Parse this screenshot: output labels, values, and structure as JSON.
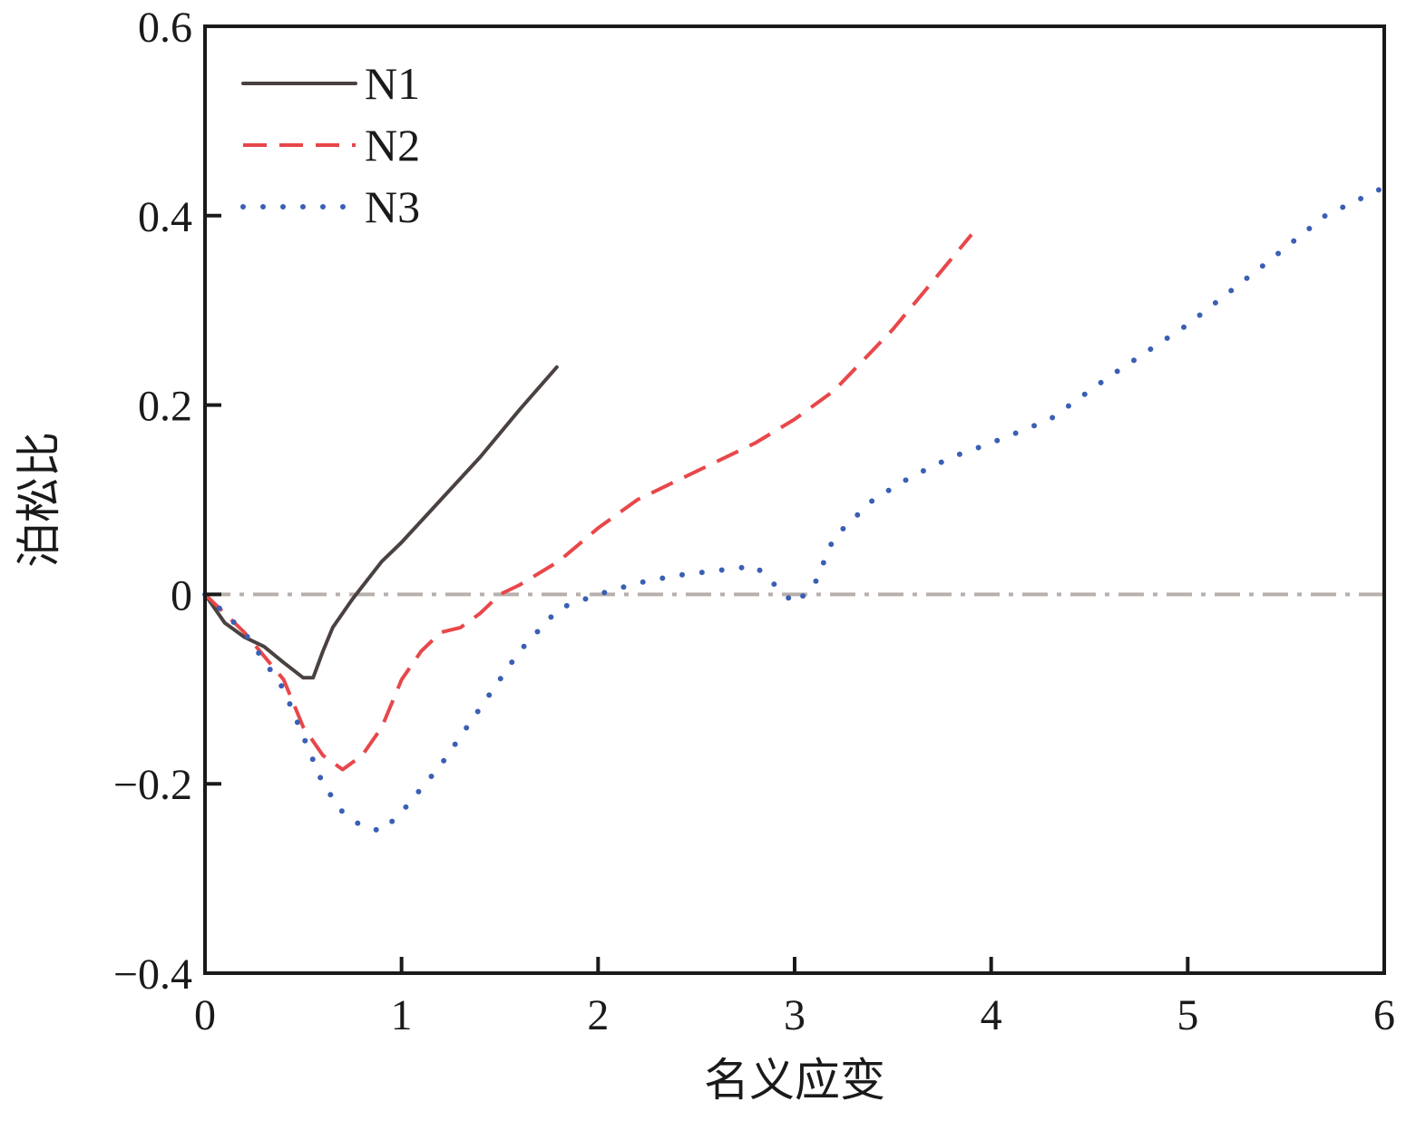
{
  "chart_data": {
    "type": "line",
    "xlabel": "名义应变",
    "ylabel": "泊松比",
    "xlim": [
      0,
      6
    ],
    "ylim": [
      -0.4,
      0.6
    ],
    "x_ticks": [
      0,
      1,
      2,
      3,
      4,
      5,
      6
    ],
    "x_tick_labels": [
      "0",
      "1",
      "2",
      "3",
      "4",
      "5",
      "6"
    ],
    "y_ticks": [
      -0.4,
      -0.2,
      0,
      0.2,
      0.4,
      0.6
    ],
    "y_tick_labels": [
      "−0.4",
      "−0.2",
      "0",
      "0.2",
      "0.4",
      "0.6"
    ],
    "grid": false,
    "legend_position": "top-left",
    "reference_line": {
      "y": 0,
      "style": "dash-dot",
      "color": "#b8b0ac"
    },
    "series": [
      {
        "name": "N1",
        "style": "solid",
        "color": "#4a4240",
        "x": [
          0,
          0.1,
          0.2,
          0.3,
          0.4,
          0.5,
          0.55,
          0.6,
          0.65,
          0.75,
          0.9,
          1.0,
          1.2,
          1.4,
          1.6,
          1.79
        ],
        "y": [
          0,
          -0.03,
          -0.045,
          -0.055,
          -0.072,
          -0.088,
          -0.088,
          -0.06,
          -0.035,
          -0.005,
          0.035,
          0.055,
          0.1,
          0.145,
          0.195,
          0.24
        ]
      },
      {
        "name": "N2",
        "style": "dashed",
        "color": "#e8474a",
        "x": [
          0,
          0.1,
          0.2,
          0.3,
          0.4,
          0.5,
          0.6,
          0.7,
          0.8,
          0.9,
          1.0,
          1.1,
          1.2,
          1.3,
          1.4,
          1.5,
          1.6,
          1.8,
          2.0,
          2.2,
          2.5,
          2.8,
          3.0,
          3.2,
          3.5,
          3.7,
          3.9
        ],
        "y": [
          0,
          -0.02,
          -0.04,
          -0.065,
          -0.09,
          -0.14,
          -0.17,
          -0.185,
          -0.17,
          -0.14,
          -0.09,
          -0.06,
          -0.04,
          -0.035,
          -0.02,
          0,
          0.01,
          0.035,
          0.07,
          0.1,
          0.13,
          0.16,
          0.185,
          0.215,
          0.28,
          0.33,
          0.38
        ]
      },
      {
        "name": "N3",
        "style": "dotted",
        "color": "#3a5fb4",
        "x": [
          0,
          0.1,
          0.2,
          0.3,
          0.4,
          0.5,
          0.6,
          0.7,
          0.8,
          0.9,
          1.0,
          1.2,
          1.4,
          1.6,
          1.8,
          2.0,
          2.2,
          2.4,
          2.6,
          2.8,
          2.9,
          3.0,
          3.1,
          3.2,
          3.4,
          3.6,
          3.8,
          4.0,
          4.3,
          4.6,
          5.0,
          5.4,
          5.7,
          6.0
        ],
        "y": [
          0,
          -0.02,
          -0.04,
          -0.07,
          -0.1,
          -0.15,
          -0.2,
          -0.23,
          -0.245,
          -0.25,
          -0.23,
          -0.18,
          -0.12,
          -0.06,
          -0.015,
          0,
          0.012,
          0.02,
          0.025,
          0.03,
          0.01,
          -0.01,
          0.01,
          0.06,
          0.1,
          0.125,
          0.145,
          0.16,
          0.185,
          0.23,
          0.285,
          0.35,
          0.4,
          0.43
        ]
      }
    ]
  }
}
